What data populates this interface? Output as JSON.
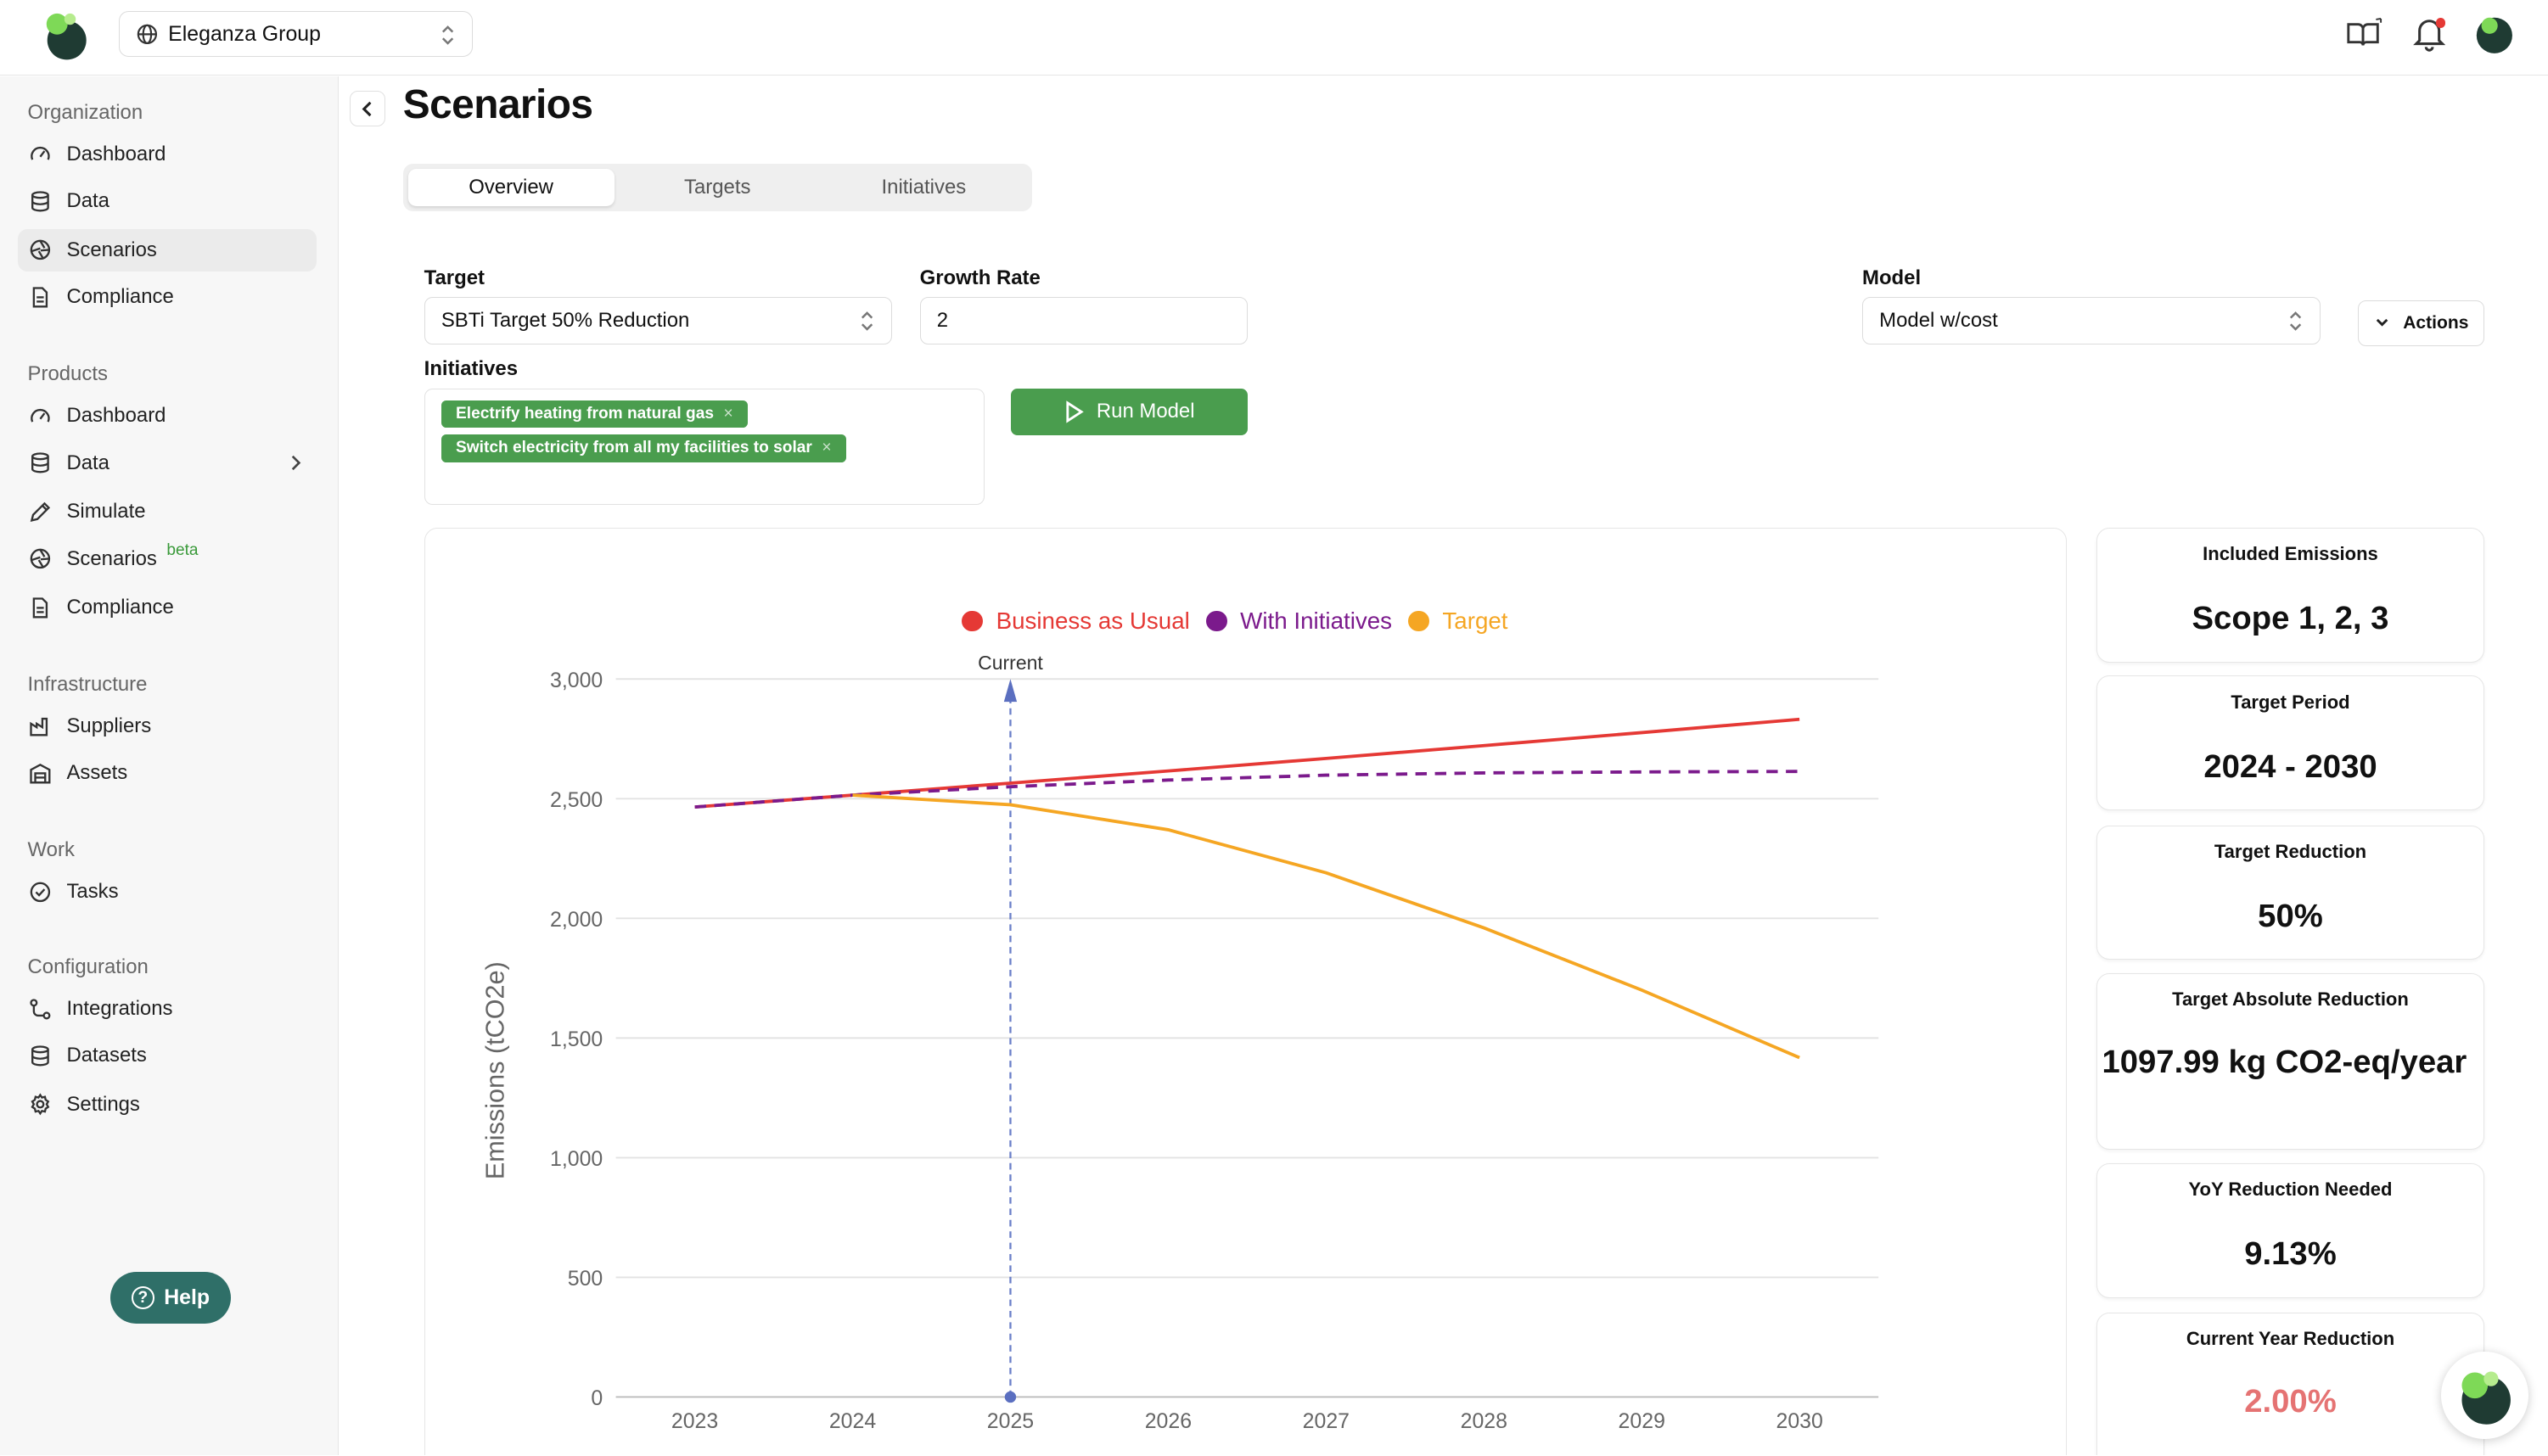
{
  "header": {
    "org_name": "Eleganza Group"
  },
  "sidebar": {
    "organization": {
      "title": "Organization",
      "items": [
        {
          "label": "Dashboard",
          "icon": "gauge-icon"
        },
        {
          "label": "Data",
          "icon": "database-icon"
        },
        {
          "label": "Scenarios",
          "icon": "aperture-icon",
          "active": true
        },
        {
          "label": "Compliance",
          "icon": "document-icon"
        }
      ]
    },
    "products": {
      "title": "Products",
      "items": [
        {
          "label": "Dashboard",
          "icon": "gauge-icon"
        },
        {
          "label": "Data",
          "icon": "database-icon"
        },
        {
          "label": "Simulate",
          "icon": "pencil-icon"
        },
        {
          "label": "Scenarios",
          "icon": "aperture-icon",
          "badge": "beta"
        },
        {
          "label": "Compliance",
          "icon": "document-icon"
        }
      ]
    },
    "infrastructure": {
      "title": "Infrastructure",
      "items": [
        {
          "label": "Suppliers",
          "icon": "factory-icon"
        },
        {
          "label": "Assets",
          "icon": "warehouse-icon"
        }
      ]
    },
    "work": {
      "title": "Work",
      "items": [
        {
          "label": "Tasks",
          "icon": "check-circle-icon"
        }
      ]
    },
    "configuration": {
      "title": "Configuration",
      "items": [
        {
          "label": "Integrations",
          "icon": "connection-icon"
        },
        {
          "label": "Datasets",
          "icon": "database-icon"
        },
        {
          "label": "Settings",
          "icon": "gear-icon"
        }
      ]
    },
    "help_label": "Help"
  },
  "page": {
    "title": "Scenarios",
    "tabs": [
      {
        "label": "Overview",
        "active": true
      },
      {
        "label": "Targets"
      },
      {
        "label": "Initiatives"
      }
    ]
  },
  "form": {
    "target_label": "Target",
    "target_value": "SBTi Target 50% Reduction",
    "growth_label": "Growth Rate",
    "growth_value": "2",
    "model_label": "Model",
    "model_value": "Model w/cost",
    "actions_label": "Actions",
    "initiatives_label": "Initiatives",
    "initiatives": [
      "Electrify heating from natural gas",
      "Switch electricity from all my facilities to solar"
    ],
    "run_label": "Run Model"
  },
  "chart_data": {
    "type": "line",
    "x": [
      2023,
      2024,
      2025,
      2026,
      2027,
      2028,
      2029,
      2030
    ],
    "ylabel": "Emissions (tCO2e)",
    "ylim": [
      0,
      3000
    ],
    "yticks": [
      "0",
      "500",
      "1,000",
      "1,500",
      "2,000",
      "2,500",
      "3,000"
    ],
    "grid": true,
    "legend_position": "top-center",
    "marker": {
      "label": "Current",
      "x": 2025
    },
    "series": [
      {
        "name": "Business as Usual",
        "color": "#e53935",
        "dashed": false,
        "values": [
          2465,
          2515,
          2565,
          2616,
          2668,
          2722,
          2776,
          2832
        ]
      },
      {
        "name": "With Initiatives",
        "color": "#7b1a8c",
        "dashed": true,
        "values": [
          2465,
          2515,
          2550,
          2578,
          2598,
          2608,
          2612,
          2614
        ]
      },
      {
        "name": "Target",
        "color": "#f5a623",
        "dashed": false,
        "values": [
          null,
          2515,
          2475,
          2370,
          2190,
          1960,
          1700,
          1418
        ]
      }
    ]
  },
  "stats": [
    {
      "title": "Included Emissions",
      "value": "Scope 1, 2, 3"
    },
    {
      "title": "Target Period",
      "value": "2024 - 2030"
    },
    {
      "title": "Target Reduction",
      "value": "50%"
    },
    {
      "title": "Target Absolute Reduction",
      "value": "1097.99 kg CO2-eq/year"
    },
    {
      "title": "YoY Reduction Needed",
      "value": "9.13%"
    },
    {
      "title": "Current Year Reduction",
      "value": "2.00%",
      "color": "#e57373"
    }
  ]
}
